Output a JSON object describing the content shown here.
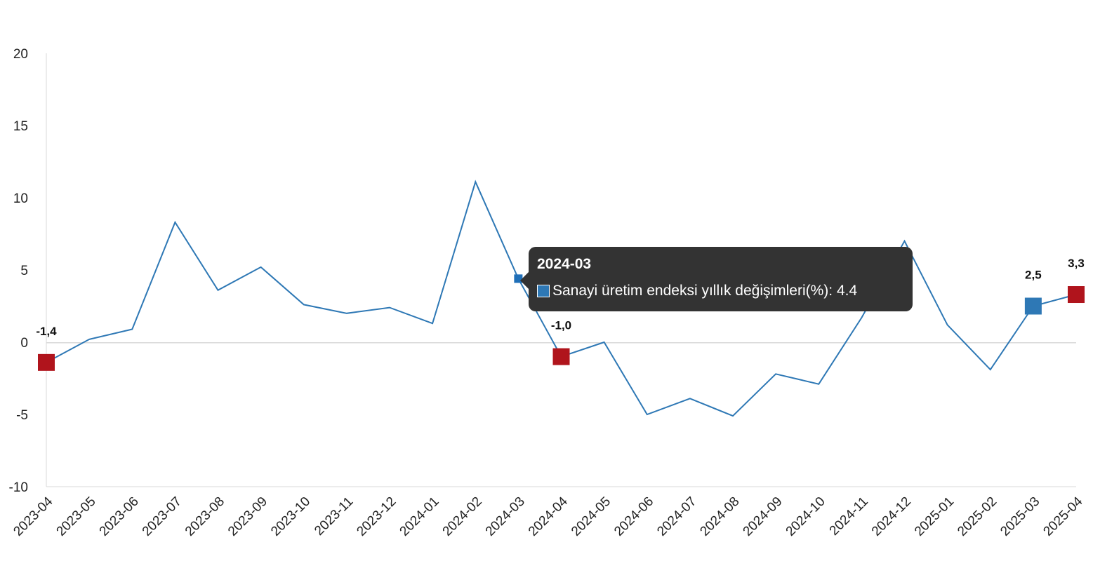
{
  "chart_data": {
    "type": "line",
    "title": "",
    "xlabel": "",
    "ylabel": "",
    "ylim": [
      -10,
      20
    ],
    "yticks": [
      "20",
      "15",
      "10",
      "5",
      "0",
      "-5",
      "-10"
    ],
    "categories": [
      "2023-04",
      "2023-05",
      "2023-06",
      "2023-07",
      "2023-08",
      "2023-09",
      "2023-10",
      "2023-11",
      "2023-12",
      "2024-01",
      "2024-02",
      "2024-03",
      "2024-04",
      "2024-05",
      "2024-06",
      "2024-07",
      "2024-08",
      "2024-09",
      "2024-10",
      "2024-11",
      "2024-12",
      "2025-01",
      "2025-02",
      "2025-03",
      "2025-04"
    ],
    "series": [
      {
        "name": "Sanayi üretim endeksi yıllık değişimleri(%)",
        "color": "#2e78b5",
        "values": [
          -1.4,
          0.2,
          0.9,
          8.3,
          3.6,
          5.2,
          2.6,
          2.0,
          2.4,
          1.3,
          11.1,
          4.4,
          -1.0,
          0.0,
          -5.0,
          -3.9,
          -5.1,
          -2.2,
          -2.9,
          1.7,
          7.0,
          1.2,
          -1.9,
          2.5,
          3.3
        ]
      }
    ],
    "annotations": [
      {
        "category": "2023-04",
        "label": "-1,4",
        "color": "#b0141c"
      },
      {
        "category": "2024-04",
        "label": "-1,0",
        "color": "#b0141c"
      },
      {
        "category": "2025-03",
        "label": "2,5",
        "color": "#2e78b5"
      },
      {
        "category": "2025-04",
        "label": "3,3",
        "color": "#b0141c"
      }
    ],
    "grid": false
  },
  "tooltip": {
    "title": "2024-03",
    "series_label": "Sanayi üretim endeksi yıllık değişimleri(%): 4.4",
    "color": "#2e78b5"
  }
}
